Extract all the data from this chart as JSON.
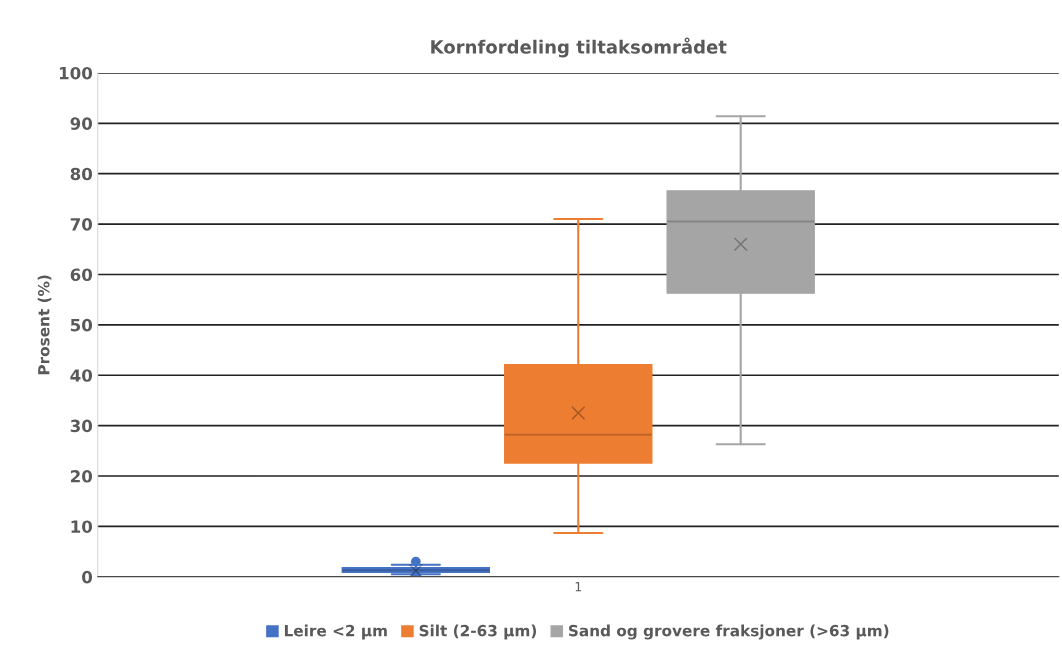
{
  "chart_data": {
    "type": "box",
    "title": "Kornfordeling tiltaksområdet",
    "ylabel": "Prosent (%)",
    "categories": [
      "1"
    ],
    "series": [
      {
        "name": "Leire <2 µm",
        "color": "#4472c4",
        "boxes": [
          {
            "low": 0.5,
            "q1": 0.9,
            "median": 1.3,
            "q3": 1.8,
            "high": 2.4,
            "mean": 1.2,
            "outliers": [
              3.0,
              0.0
            ]
          }
        ]
      },
      {
        "name": "Silt (2-63 µm)",
        "color": "#ed7d31",
        "boxes": [
          {
            "low": 8.7,
            "q1": 22.6,
            "median": 28.2,
            "q3": 42.1,
            "high": 71.0,
            "mean": 32.5
          }
        ]
      },
      {
        "name": "Sand og grovere fraksjoner (>63 µm)",
        "color": "#a5a5a5",
        "boxes": [
          {
            "low": 26.3,
            "q1": 56.3,
            "median": 70.5,
            "q3": 76.6,
            "high": 91.4,
            "mean": 66.0
          }
        ]
      }
    ],
    "ylim": [
      0,
      100
    ],
    "yticks": [
      0,
      10,
      20,
      30,
      40,
      50,
      60,
      70,
      80,
      90,
      100
    ],
    "grid": "y",
    "legend": "bottom"
  }
}
